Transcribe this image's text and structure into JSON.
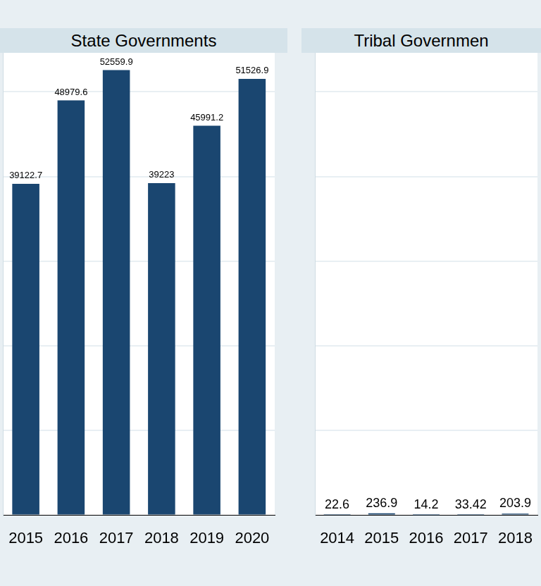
{
  "chart_data": [
    {
      "type": "bar",
      "title": "State Governments",
      "categories": [
        "2015",
        "2016",
        "2017",
        "2018",
        "2019",
        "2020"
      ],
      "values": [
        39122.7,
        48979.6,
        52559.9,
        39223,
        45991.2,
        51526.9
      ],
      "color": "#1a4670",
      "ylim": [
        0,
        54600
      ],
      "yticks": [
        0,
        10000,
        20000,
        30000,
        40000,
        50000
      ],
      "grid": true,
      "data_labels": true,
      "tick_labels": "x"
    },
    {
      "type": "bar",
      "title": "Tribal Governmen",
      "categories": [
        "2014",
        "2015",
        "2016",
        "2017",
        "2018"
      ],
      "values": [
        22.6,
        236.9,
        14.2,
        33.42,
        203.9
      ],
      "color": "#1a4670",
      "ylim": [
        0,
        54600
      ],
      "yticks": [
        0,
        10000,
        20000,
        30000,
        40000,
        50000
      ],
      "grid": true,
      "data_labels": true,
      "tick_labels": "x"
    }
  ]
}
